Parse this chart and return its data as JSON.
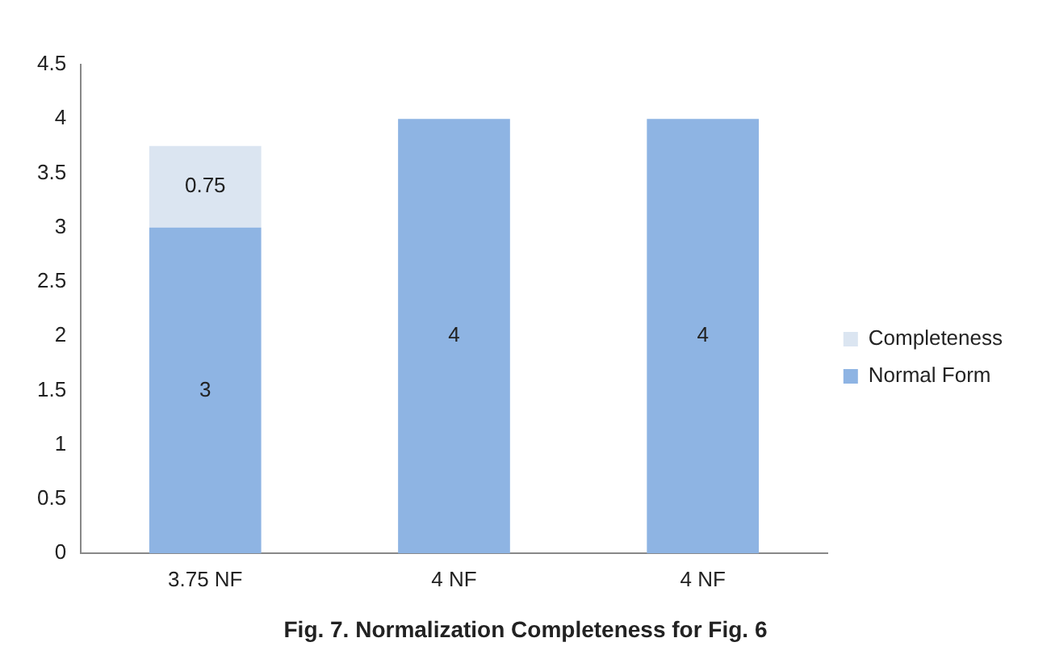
{
  "chart_data": {
    "type": "bar",
    "title": "Fig. 7. Normalization Completeness for Fig. 6",
    "categories": [
      "3.75 NF",
      "4 NF",
      "4 NF"
    ],
    "series": [
      {
        "name": "Normal Form",
        "color": "#8eb4e3",
        "values": [
          3,
          4,
          4
        ]
      },
      {
        "name": "Completeness",
        "color": "#dbe5f1",
        "values": [
          0.75,
          null,
          null
        ]
      }
    ],
    "stacked": true,
    "ylim": [
      0,
      4.5
    ],
    "yticks": [
      0,
      0.5,
      1,
      1.5,
      2,
      2.5,
      3,
      3.5,
      4,
      4.5
    ],
    "grid": false,
    "legend": "right",
    "data_labels": true
  }
}
